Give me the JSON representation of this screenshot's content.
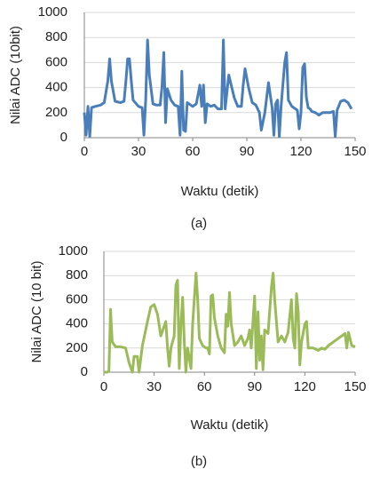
{
  "chart_data": [
    {
      "type": "line",
      "ylabel": "Nilai ADC (10bit)",
      "xlabel": "Waktu (detik)",
      "caption": "(a)",
      "x": [
        0,
        1,
        2,
        3,
        4,
        6,
        9,
        11,
        13,
        14,
        15,
        17,
        20,
        22,
        23,
        24,
        25,
        26,
        27,
        30,
        32,
        33,
        34,
        35,
        36,
        38,
        40,
        42,
        43,
        44,
        45,
        46,
        48,
        50,
        52,
        53,
        54,
        55,
        56,
        57,
        60,
        62,
        64,
        65,
        66,
        67,
        68,
        70,
        72,
        74,
        76,
        77,
        78,
        80,
        83,
        85,
        87,
        88,
        89,
        91,
        93,
        95,
        97,
        98,
        100,
        102,
        104,
        105,
        106,
        107,
        108,
        109,
        111,
        112,
        113,
        115,
        117,
        118,
        119,
        120,
        121,
        122,
        123,
        124,
        125,
        126,
        128,
        130,
        132,
        134,
        136,
        138,
        139,
        140,
        142,
        144,
        146,
        148
      ],
      "series": [
        {
          "color": "#4a7ebb",
          "values": [
            200,
            20,
            250,
            10,
            240,
            250,
            260,
            280,
            450,
            630,
            450,
            290,
            280,
            290,
            450,
            630,
            630,
            450,
            300,
            250,
            240,
            20,
            300,
            780,
            500,
            270,
            260,
            260,
            400,
            680,
            120,
            390,
            300,
            260,
            250,
            20,
            530,
            60,
            50,
            280,
            250,
            270,
            420,
            250,
            420,
            120,
            270,
            250,
            260,
            230,
            230,
            780,
            230,
            500,
            320,
            250,
            250,
            420,
            550,
            400,
            280,
            260,
            200,
            60,
            200,
            440,
            240,
            20,
            270,
            300,
            10,
            250,
            600,
            680,
            300,
            250,
            230,
            220,
            70,
            200,
            560,
            590,
            320,
            240,
            230,
            210,
            200,
            180,
            200,
            200,
            200,
            210,
            10,
            220,
            290,
            300,
            280,
            230
          ]
        }
      ],
      "xlim": [
        0,
        150
      ],
      "xticks": [
        0,
        30,
        60,
        90,
        120,
        150
      ],
      "ylim": [
        0,
        1000
      ],
      "yticks": [
        0,
        200,
        400,
        600,
        800,
        1000
      ],
      "grid": true
    },
    {
      "type": "line",
      "ylabel": "Nilai ADC (10 bit)",
      "xlabel": "Waktu (detik)",
      "caption": "(b)",
      "x": [
        0,
        2,
        3,
        4,
        5,
        7,
        10,
        13,
        15,
        17,
        18,
        20,
        21,
        23,
        26,
        28,
        30,
        32,
        34,
        36,
        37,
        38,
        39,
        40,
        42,
        43,
        44,
        45,
        46,
        47,
        48,
        49,
        50,
        52,
        53,
        55,
        56,
        57,
        59,
        61,
        62,
        63,
        64,
        65,
        66,
        68,
        70,
        72,
        73,
        74,
        75,
        76,
        78,
        80,
        82,
        84,
        86,
        87,
        88,
        90,
        91,
        92,
        93,
        94,
        95,
        96,
        98,
        100,
        101,
        102,
        104,
        106,
        108,
        110,
        112,
        113,
        114,
        115,
        116,
        117,
        118,
        120,
        121,
        122,
        125,
        128,
        130,
        132,
        134,
        136,
        138,
        140,
        142,
        144,
        145,
        146,
        148,
        150
      ],
      "series": [
        {
          "color": "#9bbb59",
          "values": [
            0,
            0,
            10,
            520,
            250,
            210,
            210,
            200,
            80,
            0,
            130,
            130,
            0,
            220,
            420,
            540,
            560,
            480,
            300,
            380,
            420,
            200,
            50,
            200,
            300,
            720,
            760,
            30,
            400,
            620,
            250,
            0,
            200,
            30,
            400,
            820,
            600,
            280,
            220,
            200,
            200,
            150,
            630,
            640,
            450,
            300,
            200,
            160,
            480,
            380,
            660,
            400,
            220,
            250,
            300,
            220,
            280,
            350,
            200,
            630,
            30,
            500,
            100,
            300,
            20,
            350,
            320,
            700,
            820,
            600,
            250,
            300,
            250,
            330,
            600,
            280,
            200,
            650,
            500,
            60,
            250,
            400,
            420,
            200,
            200,
            180,
            200,
            190,
            220,
            240,
            260,
            280,
            300,
            320,
            200,
            330,
            220,
            210
          ]
        }
      ],
      "xlim": [
        0,
        150
      ],
      "xticks": [
        0,
        30,
        60,
        90,
        120,
        150
      ],
      "ylim": [
        0,
        1000
      ],
      "yticks": [
        0,
        200,
        400,
        600,
        800,
        1000
      ],
      "grid": true
    }
  ]
}
